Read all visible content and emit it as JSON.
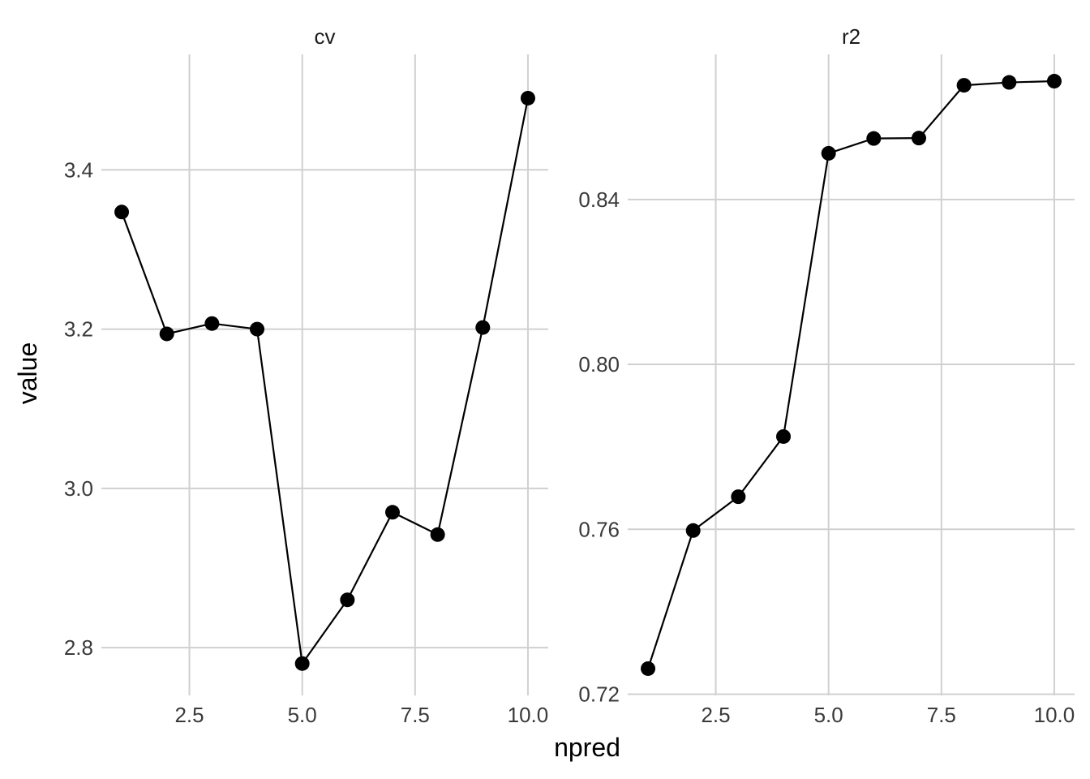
{
  "chart_data": {
    "type": "line",
    "xlabel": "npred",
    "ylabel": "value",
    "colors": {
      "line": "#000000",
      "point": "#000000",
      "grid": "#d0d0d0",
      "background": "#ffffff"
    },
    "grid": true,
    "panels": [
      {
        "strip_label": "cv",
        "x": [
          1,
          2,
          3,
          4,
          5,
          6,
          7,
          8,
          9,
          10
        ],
        "y": [
          3.347,
          3.194,
          3.207,
          3.2,
          2.78,
          2.86,
          2.97,
          2.942,
          3.202,
          3.49
        ],
        "xlim": [
          0.55,
          10.45
        ],
        "ylim": [
          2.74,
          3.545
        ],
        "x_ticks": [
          2.5,
          5.0,
          7.5,
          10.0
        ],
        "x_tick_labels": [
          "2.5",
          "5.0",
          "7.5",
          "10.0"
        ],
        "y_ticks": [
          2.8,
          3.0,
          3.2,
          3.4
        ],
        "y_tick_labels": [
          "2.8",
          "3.0",
          "3.2",
          "3.4"
        ]
      },
      {
        "strip_label": "r2",
        "x": [
          1,
          2,
          3,
          4,
          5,
          6,
          7,
          8,
          9,
          10
        ],
        "y": [
          0.7262,
          0.7597,
          0.7679,
          0.7825,
          0.8512,
          0.8548,
          0.8549,
          0.8677,
          0.8684,
          0.8687
        ],
        "xlim": [
          0.55,
          10.45
        ],
        "ylim": [
          0.7197,
          0.8752
        ],
        "x_ticks": [
          2.5,
          5.0,
          7.5,
          10.0
        ],
        "x_tick_labels": [
          "2.5",
          "5.0",
          "7.5",
          "10.0"
        ],
        "y_ticks": [
          0.72,
          0.76,
          0.8,
          0.84
        ],
        "y_tick_labels": [
          "0.72",
          "0.76",
          "0.80",
          "0.84"
        ]
      }
    ]
  }
}
